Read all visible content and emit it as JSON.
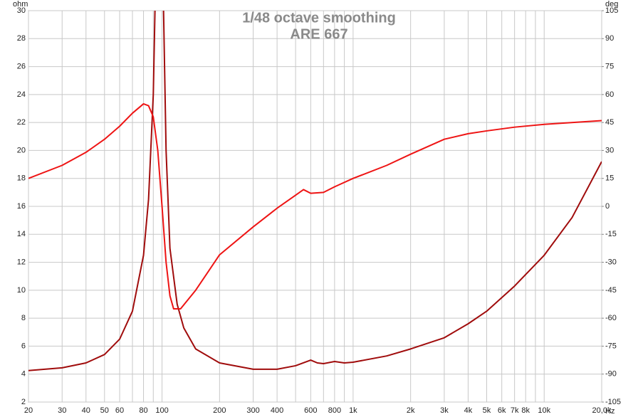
{
  "chart_data": {
    "type": "line",
    "title": "1/48 octave smoothing",
    "subtitle": "ARE 667",
    "ylabel": "ohm",
    "y2label": "deg",
    "xlabel": "Hz",
    "xscale": "log",
    "grid": true,
    "xlim": [
      20,
      20000
    ],
    "xticks": [
      20,
      30,
      40,
      50,
      60,
      80,
      100,
      200,
      300,
      400,
      600,
      800,
      {
        "value": 1000,
        "label": "1k"
      },
      {
        "value": 2000,
        "label": "2k"
      },
      {
        "value": 3000,
        "label": "3k"
      },
      {
        "value": 4000,
        "label": "4k"
      },
      {
        "value": 5000,
        "label": "5k"
      },
      {
        "value": 6000,
        "label": "6k"
      },
      {
        "value": 7000,
        "label": "7k"
      },
      {
        "value": 8000,
        "label": "8k"
      },
      {
        "value": 10000,
        "label": "10k"
      },
      {
        "value": 20000,
        "label": "20,0k"
      }
    ],
    "xminorticks": [
      70,
      90,
      500,
      700,
      900,
      9000
    ],
    "ylim": [
      2,
      30
    ],
    "yticks": [
      2,
      4,
      6,
      8,
      10,
      12,
      14,
      16,
      18,
      20,
      22,
      24,
      26,
      28,
      30
    ],
    "y2lim": [
      -105,
      105
    ],
    "y2ticks": [
      -105,
      -90,
      -75,
      -60,
      -45,
      -30,
      -15,
      0,
      15,
      30,
      45,
      60,
      75,
      90,
      105
    ],
    "series": [
      {
        "color": "#a00c0c",
        "x": [
          20,
          30,
          40,
          50,
          60,
          70,
          80,
          85,
          90,
          95,
          100,
          105,
          110,
          120,
          130,
          150,
          200,
          300,
          400,
          500,
          600,
          650,
          700,
          800,
          900,
          1000,
          1500,
          2000,
          3000,
          4000,
          5000,
          7000,
          10000,
          14000,
          20000
        ],
        "values": [
          4.25,
          4.45,
          4.8,
          5.4,
          6.5,
          8.5,
          12.5,
          16.5,
          24,
          40,
          36,
          20,
          13,
          9,
          7.3,
          5.8,
          4.8,
          4.35,
          4.35,
          4.6,
          5.0,
          4.8,
          4.75,
          4.9,
          4.8,
          4.85,
          5.3,
          5.8,
          6.6,
          7.6,
          8.5,
          10.3,
          12.5,
          15.2,
          19.2
        ]
      },
      {
        "color": "#ee1414",
        "axis": "y2",
        "x": [
          20,
          30,
          40,
          50,
          60,
          70,
          80,
          85,
          90,
          95,
          100,
          105,
          110,
          115,
          125,
          150,
          200,
          300,
          400,
          500,
          550,
          600,
          700,
          800,
          1000,
          1500,
          2000,
          3000,
          4000,
          5000,
          7000,
          10000,
          20000
        ],
        "values": [
          15,
          22,
          29,
          36,
          43,
          50,
          55,
          54,
          48,
          30,
          0,
          -30,
          -48,
          -55,
          -55,
          -45,
          -26,
          -11,
          -1,
          6,
          9,
          7,
          7.5,
          10.5,
          15,
          22,
          28,
          36,
          39,
          40.5,
          42.5,
          44,
          46
        ]
      }
    ]
  }
}
